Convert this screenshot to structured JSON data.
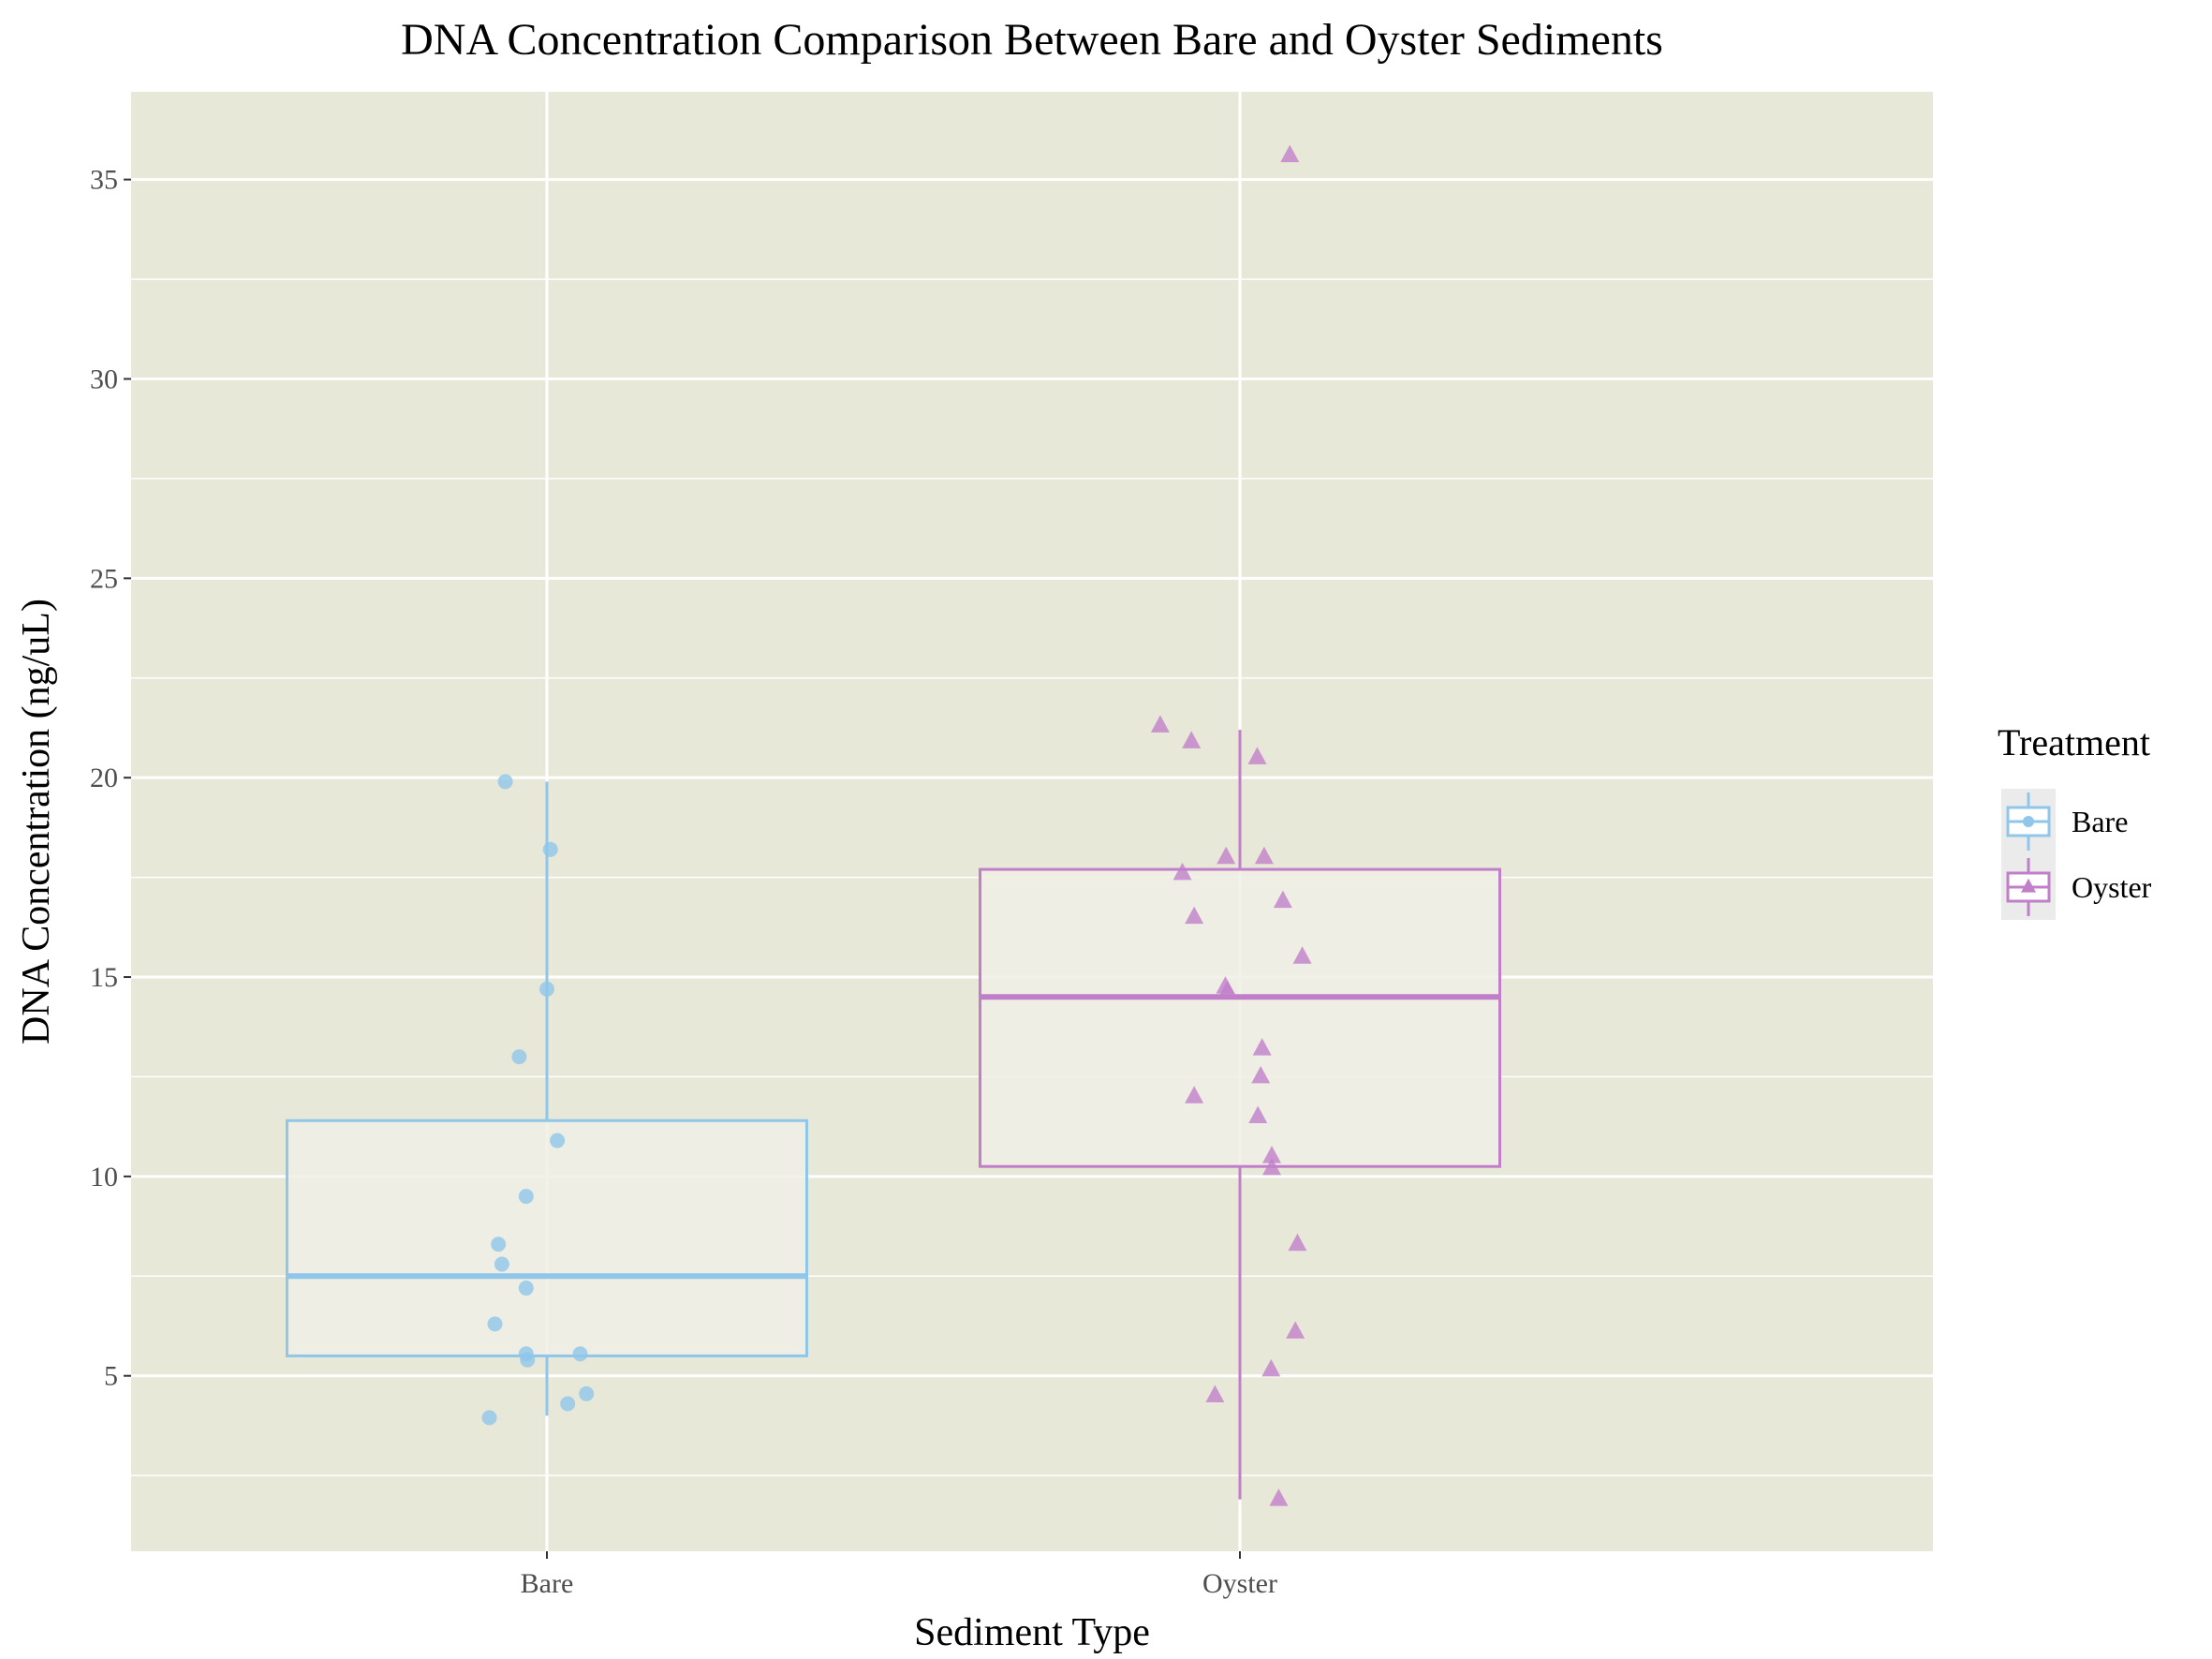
{
  "chart_data": {
    "type": "box",
    "title": "DNA Concentration Comparison Between Bare and Oyster Sediments",
    "xlabel": "Sediment Type",
    "ylabel": "DNA Concentration (ng/uL)",
    "categories": [
      "Bare",
      "Oyster"
    ],
    "ylim": [
      0.6,
      37.2
    ],
    "yticks": [
      5,
      10,
      15,
      20,
      25,
      30,
      35
    ],
    "grid": true,
    "legend": {
      "title": "Treatment",
      "position": "right",
      "entries": [
        "Bare",
        "Oyster"
      ]
    },
    "series": [
      {
        "name": "Bare",
        "color": "#8fc6ea",
        "marker": "circle",
        "box": {
          "min": 4.0,
          "q1": 5.5,
          "median": 7.5,
          "q3": 11.4,
          "max": 19.9
        },
        "points": [
          {
            "x": -0.06,
            "y": 19.9
          },
          {
            "x": 0.005,
            "y": 18.2
          },
          {
            "x": 0.0,
            "y": 14.7
          },
          {
            "x": -0.04,
            "y": 13.0
          },
          {
            "x": 0.015,
            "y": 10.9
          },
          {
            "x": -0.03,
            "y": 9.5
          },
          {
            "x": -0.07,
            "y": 8.3
          },
          {
            "x": -0.065,
            "y": 7.8
          },
          {
            "x": -0.03,
            "y": 7.2
          },
          {
            "x": -0.075,
            "y": 6.3
          },
          {
            "x": -0.03,
            "y": 5.55
          },
          {
            "x": -0.028,
            "y": 5.4
          },
          {
            "x": 0.048,
            "y": 5.55
          },
          {
            "x": 0.057,
            "y": 4.55
          },
          {
            "x": 0.03,
            "y": 4.3
          },
          {
            "x": -0.083,
            "y": 3.95
          }
        ]
      },
      {
        "name": "Oyster",
        "color": "#c17fc9",
        "marker": "triangle",
        "box": {
          "min": 1.9,
          "q1": 10.25,
          "median": 14.5,
          "q3": 17.7,
          "max": 21.2
        },
        "points": [
          {
            "x": 0.072,
            "y": 35.6
          },
          {
            "x": -0.115,
            "y": 21.3
          },
          {
            "x": -0.07,
            "y": 20.9
          },
          {
            "x": 0.025,
            "y": 20.5
          },
          {
            "x": -0.02,
            "y": 18.0
          },
          {
            "x": 0.035,
            "y": 18.0
          },
          {
            "x": -0.083,
            "y": 17.6
          },
          {
            "x": 0.062,
            "y": 16.9
          },
          {
            "x": -0.066,
            "y": 16.5
          },
          {
            "x": 0.09,
            "y": 15.5
          },
          {
            "x": -0.021,
            "y": 14.75
          },
          {
            "x": -0.018,
            "y": 14.65
          },
          {
            "x": 0.032,
            "y": 13.2
          },
          {
            "x": 0.03,
            "y": 12.5
          },
          {
            "x": -0.066,
            "y": 12.0
          },
          {
            "x": 0.026,
            "y": 11.5
          },
          {
            "x": 0.046,
            "y": 10.5
          },
          {
            "x": 0.046,
            "y": 10.2
          },
          {
            "x": 0.083,
            "y": 8.3
          },
          {
            "x": 0.08,
            "y": 6.1
          },
          {
            "x": 0.045,
            "y": 5.15
          },
          {
            "x": -0.036,
            "y": 4.5
          },
          {
            "x": 0.056,
            "y": 1.9
          }
        ]
      }
    ]
  },
  "colors": {
    "panel": "#e8e8d8",
    "grid": "#ffffff",
    "box_fill": "#f0efe6",
    "legend_key_bg": "#ebebeb"
  }
}
